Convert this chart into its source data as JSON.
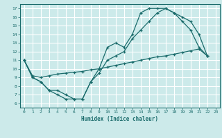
{
  "xlabel": "Humidex (Indice chaleur)",
  "bg_color": "#cceaea",
  "grid_color": "#ffffff",
  "line_color": "#1a6b6b",
  "xlim": [
    -0.5,
    23.5
  ],
  "ylim": [
    5.5,
    17.5
  ],
  "xticks": [
    0,
    1,
    2,
    3,
    4,
    5,
    6,
    7,
    8,
    9,
    10,
    11,
    12,
    13,
    14,
    15,
    16,
    17,
    18,
    19,
    20,
    21,
    22,
    23
  ],
  "yticks": [
    6,
    7,
    8,
    9,
    10,
    11,
    12,
    13,
    14,
    15,
    16,
    17
  ],
  "line1_x": [
    0,
    1,
    2,
    3,
    4,
    5,
    6,
    7,
    8,
    9,
    10,
    11,
    12,
    13,
    14,
    15,
    16,
    17,
    18,
    19,
    20,
    21,
    22
  ],
  "line1_y": [
    11,
    9,
    8.5,
    7.5,
    7,
    6.5,
    6.5,
    6.5,
    8.5,
    10,
    12.5,
    13,
    12.5,
    14,
    16.5,
    17,
    17,
    17,
    16.5,
    15.5,
    14.5,
    12.5,
    11.5
  ],
  "line2_x": [
    0,
    1,
    2,
    3,
    4,
    5,
    6,
    7,
    8,
    9,
    10,
    11,
    12,
    13,
    14,
    15,
    16,
    17,
    18,
    19,
    20,
    21,
    22
  ],
  "line2_y": [
    11,
    9.2,
    9.0,
    9.2,
    9.4,
    9.5,
    9.6,
    9.7,
    9.9,
    10.0,
    10.2,
    10.4,
    10.6,
    10.8,
    11.0,
    11.2,
    11.4,
    11.5,
    11.7,
    11.9,
    12.1,
    12.3,
    11.5
  ],
  "line3_x": [
    0,
    1,
    2,
    3,
    4,
    5,
    6,
    7,
    8,
    9,
    10,
    11,
    12,
    13,
    14,
    15,
    16,
    17,
    18,
    19,
    20,
    21,
    22
  ],
  "line3_y": [
    11,
    9,
    8.5,
    7.5,
    7.5,
    7.0,
    6.5,
    6.5,
    8.5,
    9.5,
    11.0,
    11.5,
    12.0,
    13.5,
    14.5,
    15.5,
    16.5,
    17.0,
    16.5,
    16.0,
    15.5,
    14.0,
    11.5
  ]
}
